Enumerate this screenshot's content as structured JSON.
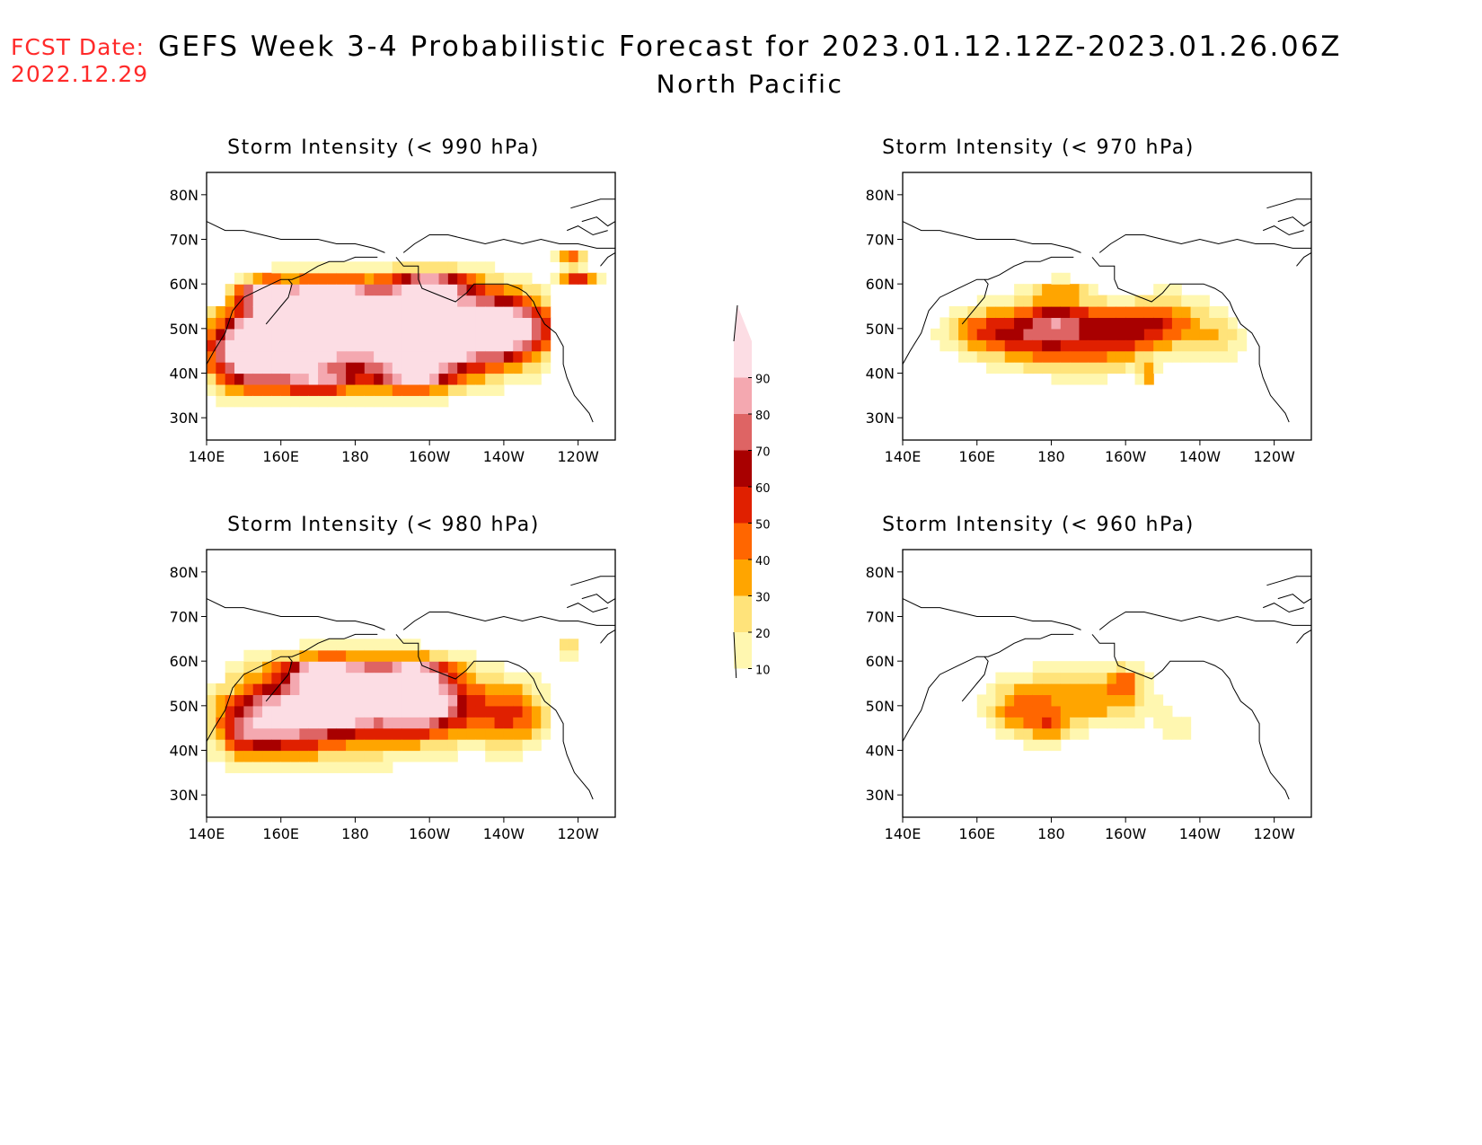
{
  "header": {
    "fcst_label": "FCST Date:",
    "fcst_date": "2022.12.29",
    "title": "GEFS Week 3-4 Probabilistic Forecast for 2023.01.12.12Z-2023.01.26.06Z",
    "subtitle": "North Pacific"
  },
  "panels": [
    {
      "title": "Storm Intensity (< 990 hPa)",
      "threshold_hPa": 990
    },
    {
      "title": "Storm Intensity (< 970 hPa)",
      "threshold_hPa": 970
    },
    {
      "title": "Storm Intensity (< 980 hPa)",
      "threshold_hPa": 980
    },
    {
      "title": "Storm Intensity (< 960 hPa)",
      "threshold_hPa": 960
    }
  ],
  "axes": {
    "lat_labels": [
      "80N",
      "70N",
      "60N",
      "50N",
      "40N",
      "30N"
    ],
    "lat_values": [
      80,
      70,
      60,
      50,
      40,
      30
    ],
    "lon_labels": [
      "140E",
      "160E",
      "180",
      "160W",
      "140W",
      "120W"
    ],
    "lon_values": [
      140,
      160,
      180,
      200,
      220,
      240
    ],
    "lat_range": [
      25,
      85
    ],
    "lon_range": [
      140,
      250
    ]
  },
  "colorbar": {
    "levels": [
      "10",
      "20",
      "30",
      "40",
      "50",
      "60",
      "70",
      "80",
      "90"
    ],
    "colors": [
      "#fff7b0",
      "#ffe37a",
      "#ffa500",
      "#ff6600",
      "#e02000",
      "#a80000",
      "#de6464",
      "#f4a8b0",
      "#fcdde4"
    ]
  }
}
